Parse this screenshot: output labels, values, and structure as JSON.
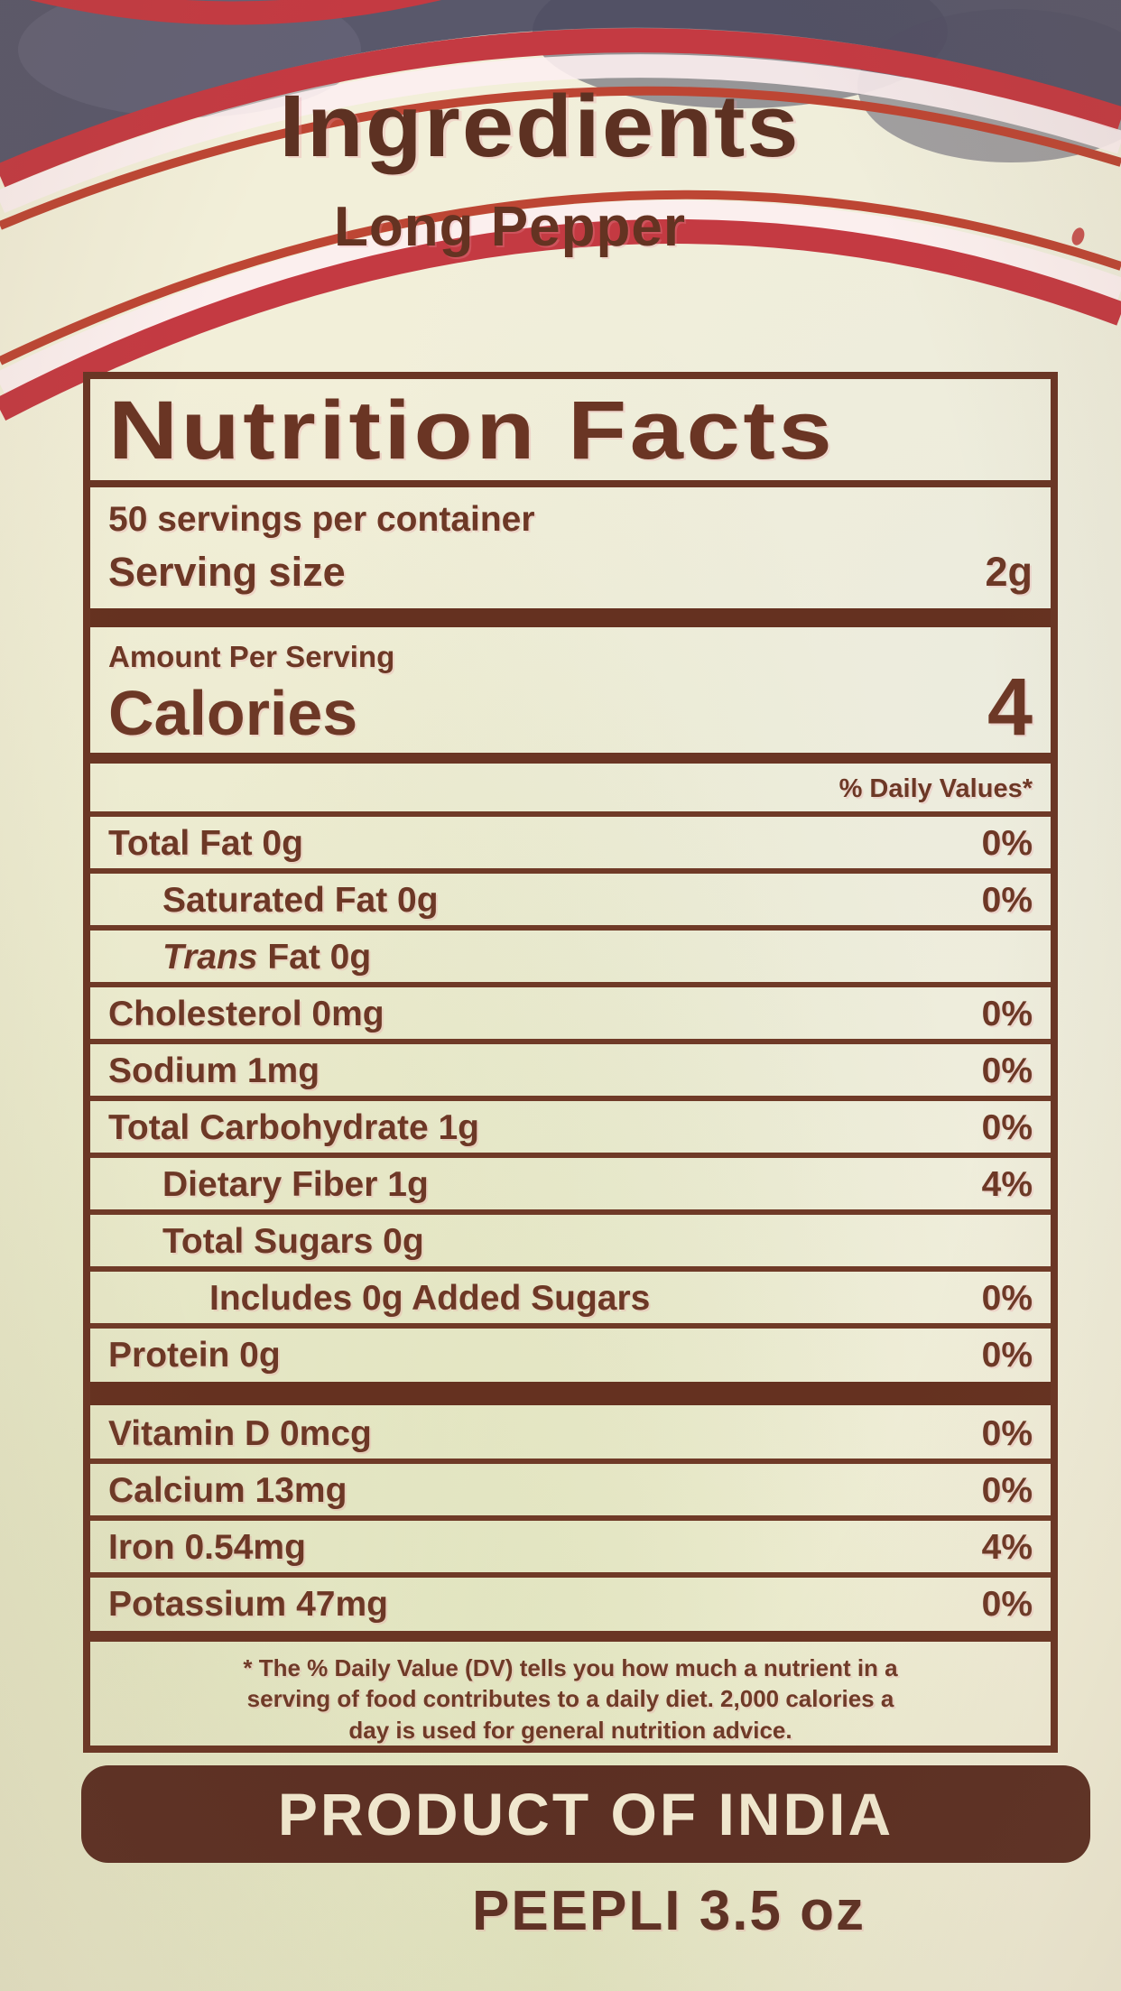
{
  "header": {
    "title": "Ingredients",
    "product": "Long Pepper"
  },
  "nutrition": {
    "title": "Nutrition Facts",
    "servings_per_container": "50 servings per container",
    "serving_size_label": "Serving size",
    "serving_size_value": "2g",
    "amount_per_serving": "Amount Per Serving",
    "calories_label": "Calories",
    "calories_value": "4",
    "daily_value_header": "% Daily Values*",
    "rows": [
      {
        "type": "item",
        "name": "Total Fat",
        "amount": "0g",
        "dv": "0%",
        "indent": 0,
        "weight": "bold"
      },
      {
        "type": "item",
        "name": "Saturated Fat",
        "amount": "0g",
        "dv": "0%",
        "indent": 1
      },
      {
        "type": "item",
        "name": "Trans Fat",
        "amount": "0g",
        "dv": "",
        "indent": 1,
        "italic": true
      },
      {
        "type": "item",
        "name": "Cholesterol",
        "amount": "0mg",
        "dv": "0%",
        "indent": 0,
        "weight": "bold"
      },
      {
        "type": "item",
        "name": "Sodium",
        "amount": "1mg",
        "dv": "0%",
        "indent": 0,
        "weight": "bold"
      },
      {
        "type": "item",
        "name": "Total Carbohydrate",
        "amount": "1g",
        "dv": "0%",
        "indent": 0,
        "weight": "bold"
      },
      {
        "type": "item",
        "name": "Dietary Fiber",
        "amount": "1g",
        "dv": "4%",
        "indent": 1
      },
      {
        "type": "item",
        "name": "Total Sugars",
        "amount": "0g",
        "dv": "",
        "indent": 1
      },
      {
        "type": "item",
        "name": "Includes 0g Added Sugars",
        "amount": "",
        "dv": "0%",
        "indent": 2
      },
      {
        "type": "item",
        "name": "Protein",
        "amount": "0g",
        "dv": "0%",
        "indent": 0,
        "weight": "bold"
      },
      {
        "type": "bar"
      },
      {
        "type": "item",
        "name": "Vitamin D",
        "amount": "0mcg",
        "dv": "0%",
        "indent": 0
      },
      {
        "type": "item",
        "name": "Calcium",
        "amount": "13mg",
        "dv": "0%",
        "indent": 0
      },
      {
        "type": "item",
        "name": "Iron",
        "amount": "0.54mg",
        "dv": "4%",
        "indent": 0
      },
      {
        "type": "item",
        "name": "Potassium",
        "amount": "47mg",
        "dv": "0%",
        "indent": 0
      }
    ],
    "footnote_lines": [
      "* The % Daily Value (DV) tells you how much a nutrient in a",
      "serving of food contributes to a daily diet. 2,000 calories a",
      "day is used for general nutrition advice."
    ]
  },
  "footer": {
    "origin": "PRODUCT OF INDIA",
    "weight": "PEEPLI 3.5 oz"
  },
  "colors": {
    "label_background": "#f2efd9",
    "ink_brown": "#6a3524",
    "accent_red": "#c43a42",
    "banner_brown": "#5c2f23",
    "backdrop_slate": "#59586b"
  }
}
